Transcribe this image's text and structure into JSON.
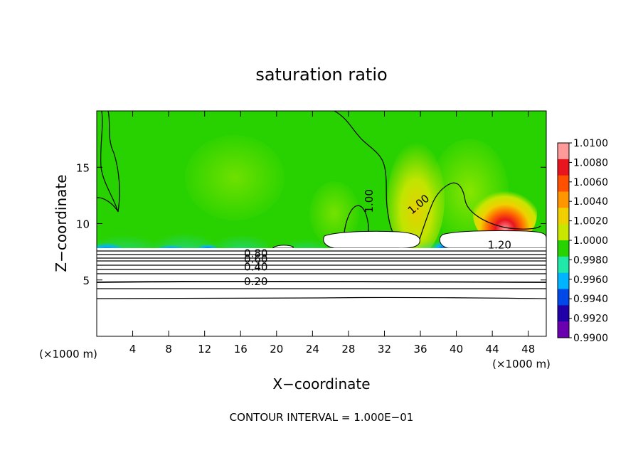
{
  "chart_data": {
    "type": "heatmap",
    "title": "saturation ratio",
    "xlabel": "X−coordinate",
    "ylabel": "Z−coordinate",
    "x_unit": "(×1000 m)",
    "x_unit_right": "(×1000 m)",
    "footer": "CONTOUR INTERVAL = 1.000E−01",
    "xlim": [
      0,
      50
    ],
    "ylim": [
      0,
      20
    ],
    "x_ticks": [
      4,
      8,
      12,
      16,
      20,
      24,
      28,
      32,
      36,
      40,
      44,
      48
    ],
    "y_ticks": [
      5,
      10,
      15
    ],
    "colorbar": {
      "labels": [
        "1.0100",
        "1.0080",
        "1.0060",
        "1.0040",
        "1.0020",
        "1.0000",
        "0.9980",
        "0.9960",
        "0.9940",
        "0.9920",
        "0.9900"
      ],
      "colors": [
        "#ff9a9a",
        "#e8141e",
        "#ff5000",
        "#ff9600",
        "#f0d000",
        "#c8e600",
        "#28d200",
        "#20e8a8",
        "#00b4ff",
        "#0048e8",
        "#2000a8",
        "#6a00b0"
      ]
    },
    "contour_labels": [
      {
        "text": "1.00",
        "x": 30.3,
        "z": 12.0,
        "rotate": -90
      },
      {
        "text": "1.00",
        "x": 35.8,
        "z": 11.7,
        "rotate": -40
      },
      {
        "text": "1.20",
        "x": 44.8,
        "z": 8.1,
        "rotate": 0
      },
      {
        "text": "0.80",
        "x": 17.7,
        "z": 7.35,
        "rotate": 0
      },
      {
        "text": "0.60",
        "x": 17.7,
        "z": 6.85,
        "rotate": 0
      },
      {
        "text": "0.40",
        "x": 17.7,
        "z": 6.15,
        "rotate": 0
      },
      {
        "text": "0.20",
        "x": 17.7,
        "z": 4.85,
        "rotate": 0
      }
    ]
  }
}
